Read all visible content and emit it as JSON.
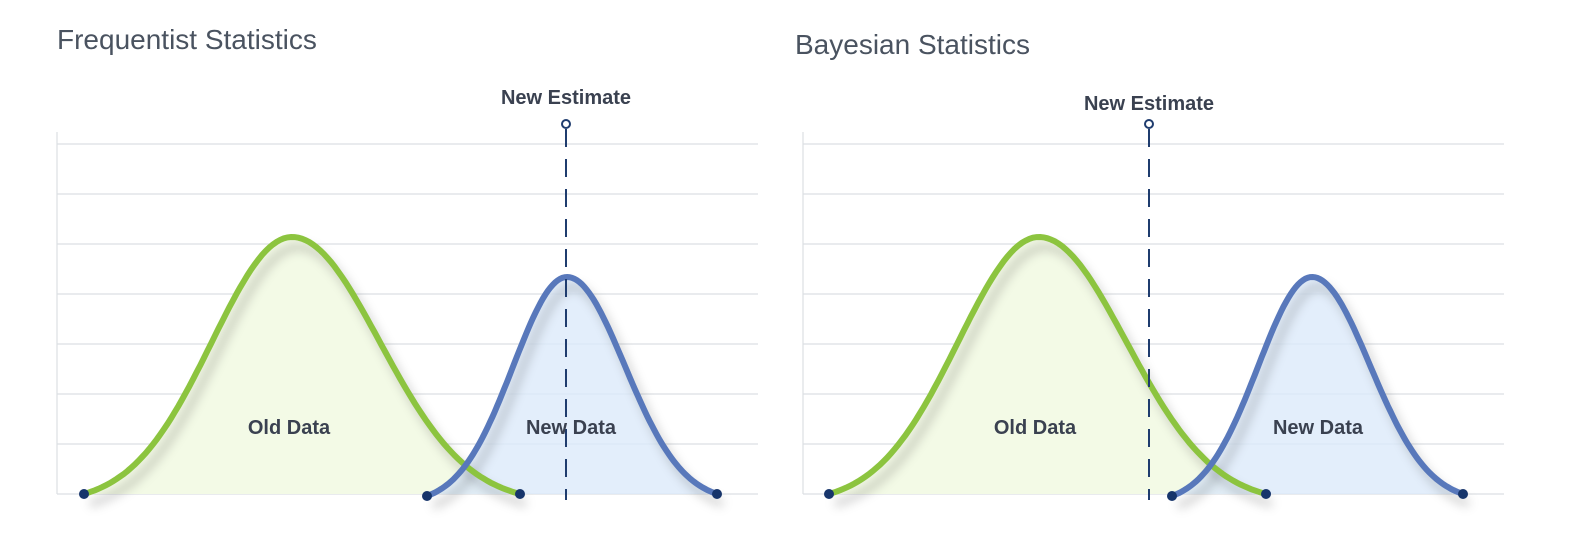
{
  "panels": [
    {
      "title": "Frequentist Statistics",
      "estimate_label": "New Estimate",
      "old_label": "Old Data",
      "new_label": "New Data"
    },
    {
      "title": "Bayesian Statistics",
      "estimate_label": "New Estimate",
      "old_label": "Old Data",
      "new_label": "New Data"
    }
  ]
}
